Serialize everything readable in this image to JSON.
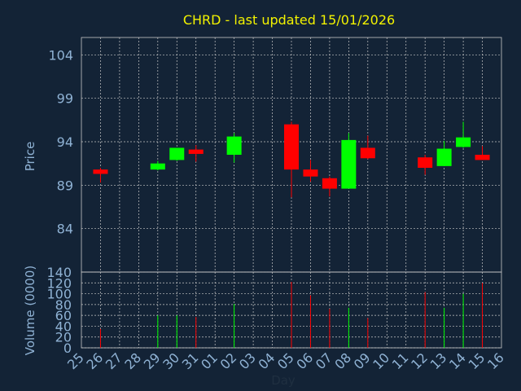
{
  "chart_data": {
    "type": "candlestick",
    "title": "CHRD - last updated 15/01/2026",
    "colors": {
      "background": "#132336",
      "up": "#00ff00",
      "down": "#ff0000",
      "grid": "#c8c8c8",
      "text": "#8fb2d4",
      "title": "#f2f200"
    },
    "price_panel": {
      "ylabel": "Price",
      "ylim": [
        79,
        106
      ],
      "yticks": [
        84,
        89,
        94,
        99,
        104
      ]
    },
    "volume_panel": {
      "ylabel": "Volume (0000)",
      "ylim": [
        0,
        140
      ],
      "yticks": [
        0,
        20,
        40,
        60,
        80,
        100,
        120,
        140
      ]
    },
    "xlabel": "Day",
    "x_ticks": [
      "25",
      "26",
      "27",
      "28",
      "29",
      "30",
      "31",
      "01",
      "02",
      "03",
      "04",
      "05",
      "06",
      "07",
      "08",
      "09",
      "10",
      "11",
      "12",
      "13",
      "14",
      "15",
      "16"
    ],
    "candles": [
      {
        "day": "26",
        "open": 90.8,
        "high": 91.0,
        "low": 89.3,
        "close": 90.3,
        "volume": 35
      },
      {
        "day": "29",
        "open": 90.8,
        "high": 91.8,
        "low": 90.7,
        "close": 91.5,
        "volume": 60
      },
      {
        "day": "30",
        "open": 91.9,
        "high": 93.3,
        "low": 91.8,
        "close": 93.3,
        "volume": 60
      },
      {
        "day": "31",
        "open": 93.1,
        "high": 93.6,
        "low": 91.7,
        "close": 92.6,
        "volume": 57
      },
      {
        "day": "02",
        "open": 92.5,
        "high": 95.0,
        "low": 91.6,
        "close": 94.6,
        "volume": 81
      },
      {
        "day": "05",
        "open": 96.0,
        "high": 96.3,
        "low": 87.6,
        "close": 90.8,
        "volume": 122
      },
      {
        "day": "06",
        "open": 90.8,
        "high": 91.9,
        "low": 89.4,
        "close": 90.0,
        "volume": 97
      },
      {
        "day": "07",
        "open": 89.8,
        "high": 90.0,
        "low": 87.7,
        "close": 88.6,
        "volume": 72
      },
      {
        "day": "08",
        "open": 88.6,
        "high": 95.0,
        "low": 88.6,
        "close": 94.2,
        "volume": 74
      },
      {
        "day": "09",
        "open": 93.3,
        "high": 94.7,
        "low": 92.0,
        "close": 92.1,
        "volume": 55
      },
      {
        "day": "12",
        "open": 92.2,
        "high": 92.5,
        "low": 90.2,
        "close": 91.0,
        "volume": 103
      },
      {
        "day": "13",
        "open": 91.2,
        "high": 94.1,
        "low": 91.2,
        "close": 93.2,
        "volume": 74
      },
      {
        "day": "14",
        "open": 93.4,
        "high": 96.3,
        "low": 93.3,
        "close": 94.5,
        "volume": 100
      },
      {
        "day": "15",
        "open": 92.5,
        "high": 93.5,
        "low": 91.9,
        "close": 91.9,
        "volume": 120
      }
    ]
  }
}
